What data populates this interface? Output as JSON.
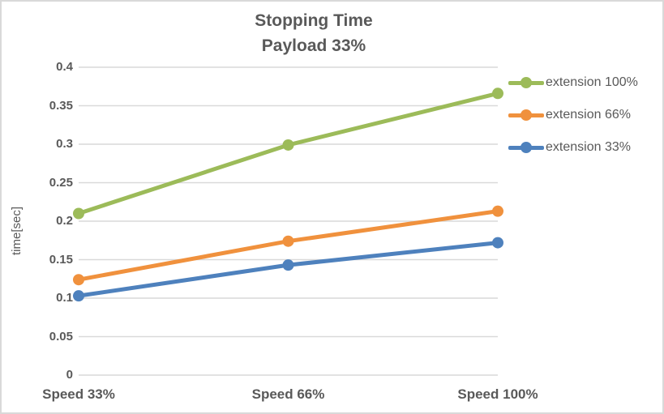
{
  "window": {
    "background": "#ffffff",
    "border_color": "#d9d9d9"
  },
  "chart_data": {
    "type": "line",
    "title": "Stopping Time",
    "subtitle": "Payload 33%",
    "categories": [
      "Speed 33%",
      "Speed 66%",
      "Speed 100%"
    ],
    "series": [
      {
        "name": "extension 100%",
        "color": "#9cbb59",
        "values": [
          0.21,
          0.299,
          0.366
        ]
      },
      {
        "name": "extension 66%",
        "color": "#f0913d",
        "values": [
          0.124,
          0.174,
          0.213
        ]
      },
      {
        "name": "extension 33%",
        "color": "#4e81bd",
        "values": [
          0.103,
          0.143,
          0.172
        ]
      }
    ],
    "xlabel": "",
    "ylabel": "time[sec]",
    "ylim": [
      0,
      0.4
    ],
    "ytick_step": 0.05,
    "ytick_labels": [
      "0",
      "0.05",
      "0.1",
      "0.15",
      "0.2",
      "0.25",
      "0.3",
      "0.35",
      "0.4"
    ],
    "grid": true,
    "grid_color": "#d9d9d9",
    "text_color": "#595959",
    "legend_position": "right",
    "marker": "circle",
    "line_width": 5,
    "marker_radius": 7
  }
}
